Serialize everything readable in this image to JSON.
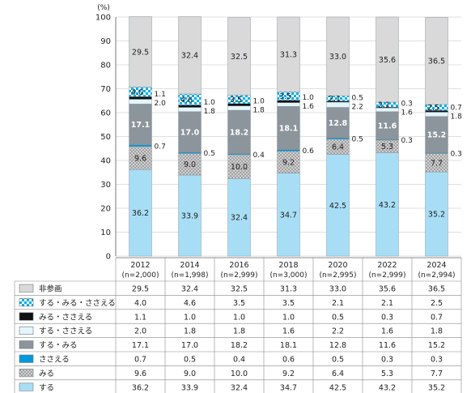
{
  "chart_data": {
    "type": "bar",
    "stacked": true,
    "y_unit": "(%)",
    "ylim": [
      0,
      100
    ],
    "y_ticks": [
      0,
      10,
      20,
      30,
      40,
      50,
      60,
      70,
      80,
      90,
      100
    ],
    "grid": true,
    "categories": [
      "2012",
      "2014",
      "2016",
      "2018",
      "2020",
      "2022",
      "2024"
    ],
    "sample_sizes": [
      "(n=2,000)",
      "(n=1,998)",
      "(n=2,999)",
      "(n=3,000)",
      "(n=2,995)",
      "(n=2,999)",
      "(n=2,994)"
    ],
    "stack_order_bottom_to_top": [
      "する",
      "みる",
      "ささえる",
      "する・みる",
      "する・ささえる",
      "みる・ささえる",
      "する・みる・ささえる",
      "非参画"
    ],
    "series": [
      {
        "name": "非参画",
        "color": "#d9d9d9",
        "pattern": "solid",
        "values": [
          29.5,
          32.4,
          32.5,
          31.3,
          33.0,
          35.6,
          36.5
        ],
        "labels": [
          "29.5",
          "32.4",
          "32.5",
          "31.3",
          "33.0",
          "35.6",
          "36.5"
        ]
      },
      {
        "name": "する・みる・ささえる",
        "color": "#00b0e8",
        "pattern": "checker",
        "values": [
          4.0,
          4.6,
          3.5,
          3.5,
          2.1,
          2.1,
          2.5
        ],
        "labels": [
          "4.0",
          "4.6",
          "3.5",
          "3.5",
          "2.1",
          "2.1",
          "2.5"
        ]
      },
      {
        "name": "みる・ささえる",
        "color": "#111111",
        "pattern": "solid",
        "values": [
          1.1,
          1.0,
          1.0,
          1.0,
          0.5,
          0.3,
          0.7
        ],
        "labels": [
          "1.1",
          "1.0",
          "1.0",
          "1.0",
          "0.5",
          "0.3",
          "0.7"
        ]
      },
      {
        "name": "する・ささえる",
        "color": "#e4f6fc",
        "pattern": "solid",
        "values": [
          2.0,
          1.8,
          1.8,
          1.6,
          2.2,
          1.6,
          1.8
        ],
        "labels": [
          "2.0",
          "1.8",
          "1.8",
          "1.6",
          "2.2",
          "1.6",
          "1.8"
        ]
      },
      {
        "name": "する・みる",
        "color": "#8c959b",
        "pattern": "solid",
        "values": [
          17.1,
          17.0,
          18.2,
          18.1,
          12.8,
          11.6,
          15.2
        ],
        "labels": [
          "17.1",
          "17.0",
          "18.2",
          "18.1",
          "12.8",
          "11.6",
          "15.2"
        ]
      },
      {
        "name": "ささえる",
        "color": "#0099dd",
        "pattern": "solid",
        "values": [
          0.7,
          0.5,
          0.4,
          0.6,
          0.5,
          0.3,
          0.3
        ],
        "labels": [
          "0.7",
          "0.5",
          "0.4",
          "0.6",
          "0.5",
          "0.3",
          "0.3"
        ]
      },
      {
        "name": "みる",
        "color": "#c6c6c6",
        "pattern": "dots",
        "values": [
          9.6,
          9.0,
          10.0,
          9.2,
          6.4,
          5.3,
          7.7
        ],
        "labels": [
          "9.6",
          "9.0",
          "10.0",
          "9.2",
          "6.4",
          "5.3",
          "7.7"
        ]
      },
      {
        "name": "する",
        "color": "#a8def5",
        "pattern": "solid",
        "values": [
          36.2,
          33.9,
          32.4,
          34.7,
          42.5,
          43.2,
          35.2
        ],
        "labels": [
          "36.2",
          "33.9",
          "32.4",
          "34.7",
          "42.5",
          "43.2",
          "35.2"
        ]
      }
    ]
  }
}
